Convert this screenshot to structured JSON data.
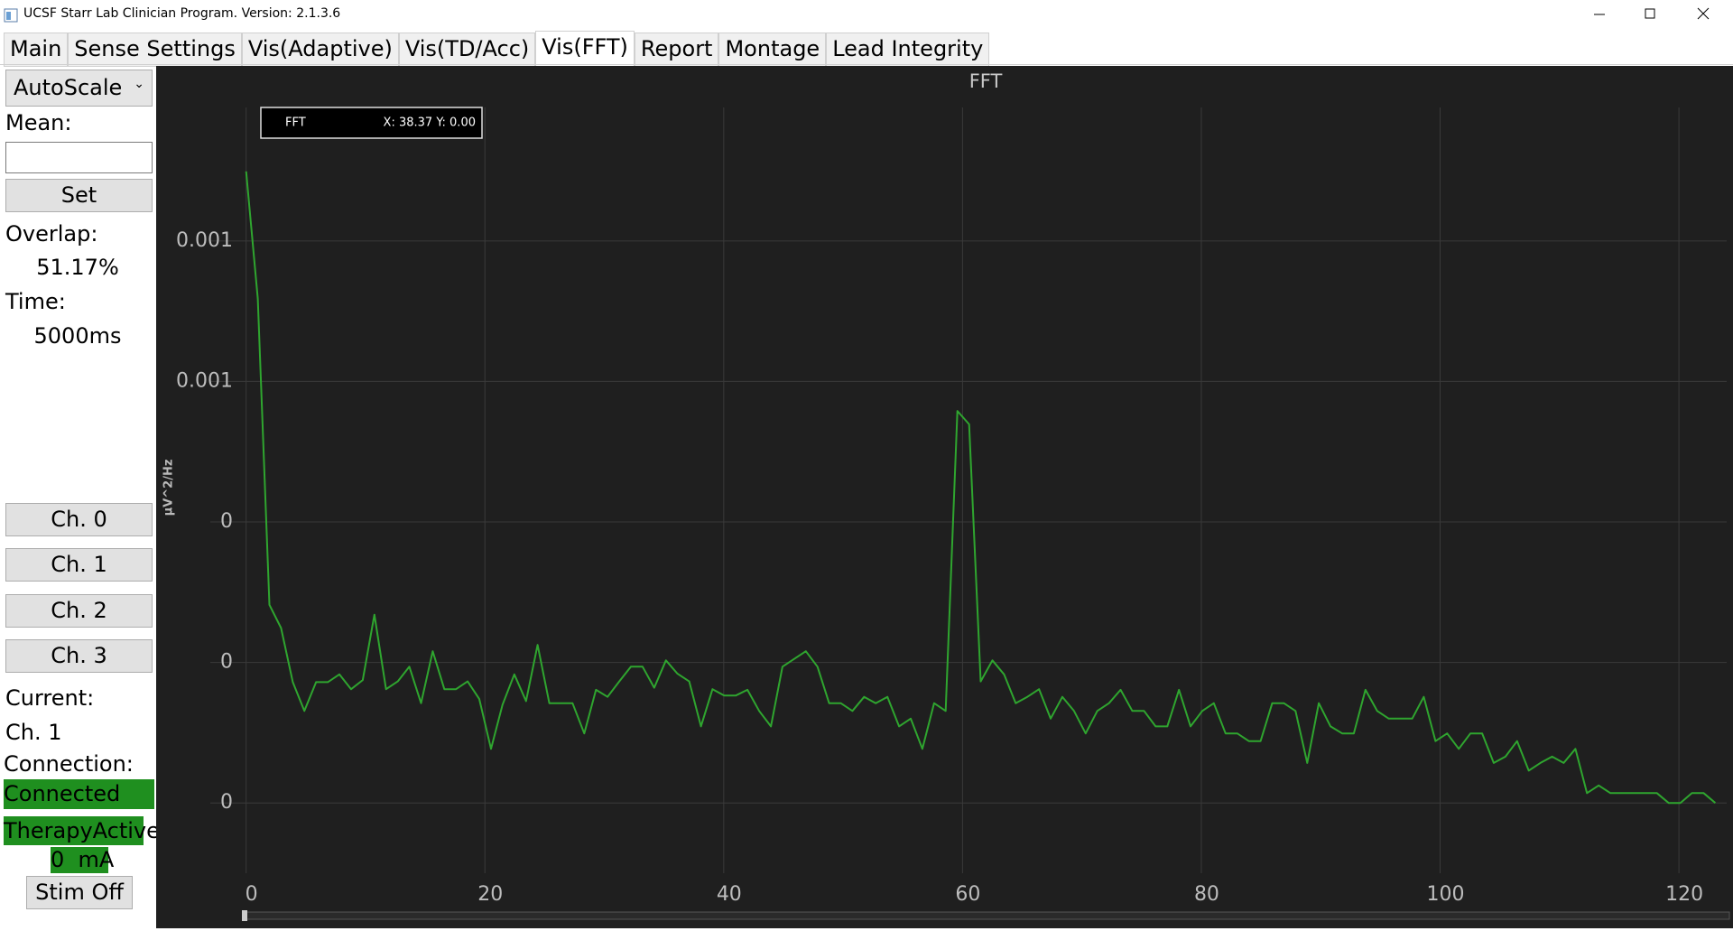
{
  "window": {
    "title": "UCSF Starr Lab Clinician Program. Version: 2.1.3.6"
  },
  "tabs": [
    "Main",
    "Sense Settings",
    "Vis(Adaptive)",
    "Vis(TD/Acc)",
    "Vis(FFT)",
    "Report",
    "Montage",
    "Lead Integrity"
  ],
  "sidebar": {
    "scale_mode": "AutoScale",
    "mean_label": "Mean:",
    "set_button": "Set",
    "overlap_label": "Overlap:",
    "overlap_value": "51.17%",
    "time_label": "Time:",
    "time_value": "5000ms",
    "channel_buttons": [
      "Ch. 0",
      "Ch. 1",
      "Ch. 2",
      "Ch. 3"
    ],
    "current_label": "Current:",
    "current_value": "Ch. 1",
    "connection_label": "Connection:",
    "connection_status": "Connected",
    "therapy_status": "TherapyActive",
    "amplitude": "0  mA",
    "stim_button": "Stim Off"
  },
  "chart_data": {
    "type": "line",
    "title": "FFT",
    "ylabel": "µV^2/Hz",
    "readout": "X: 38.37 Y: 0.00",
    "x": [
      0,
      0.98,
      1.95,
      2.93,
      3.91,
      4.88,
      5.86,
      6.84,
      7.81,
      8.79,
      9.77,
      10.74,
      11.72,
      12.7,
      13.67,
      14.65,
      15.63,
      16.6,
      17.58,
      18.55,
      19.53,
      20.51,
      21.48,
      22.46,
      23.44,
      24.41,
      25.39,
      26.37,
      27.34,
      28.32,
      29.3,
      30.27,
      31.25,
      32.23,
      33.2,
      34.18,
      35.16,
      36.13,
      37.11,
      38.09,
      39.06,
      40.04,
      41.02,
      41.99,
      42.97,
      43.95,
      44.92,
      45.9,
      46.88,
      47.85,
      48.83,
      49.8,
      50.78,
      51.76,
      52.73,
      53.71,
      54.69,
      55.66,
      56.64,
      57.62,
      58.59,
      59.57,
      60.55,
      61.52,
      62.5,
      63.48,
      64.45,
      65.43,
      66.41,
      67.38,
      68.36,
      69.34,
      70.31,
      71.29,
      72.27,
      73.24,
      74.22,
      75.2,
      76.17,
      77.15,
      78.13,
      79.1,
      80.08,
      81.05,
      82.03,
      83.01,
      83.98,
      84.96,
      85.94,
      86.91,
      87.89,
      88.87,
      89.84,
      90.82,
      91.8,
      92.77,
      93.75,
      94.73,
      95.7,
      96.68,
      97.66,
      98.63,
      99.61,
      100.59,
      101.56,
      102.54,
      103.52,
      104.49,
      105.47,
      106.45,
      107.42,
      108.4,
      109.38,
      110.35,
      111.33,
      112.3,
      113.28,
      114.26,
      115.23,
      116.21,
      117.19,
      118.16,
      119.14,
      120.12,
      121.09,
      122.07,
      123.05
    ],
    "series": [
      {
        "name": "FFT",
        "color": "#2fa52f",
        "values": [
          0.000899,
          0.000718,
          0.000282,
          0.000249,
          0.000172,
          0.000131,
          0.000172,
          0.000172,
          0.000183,
          0.000162,
          0.000175,
          0.000268,
          0.000162,
          0.000173,
          0.000194,
          0.000142,
          0.000216,
          0.000162,
          0.000162,
          0.000173,
          0.000148,
          7.7e-05,
          0.00014,
          0.000183,
          0.000145,
          0.000225,
          0.000142,
          0.000142,
          0.000142,
          9.9e-05,
          0.000161,
          0.000151,
          0.000173,
          0.000194,
          0.000194,
          0.000164,
          0.000203,
          0.000184,
          0.000173,
          0.000109,
          0.000162,
          0.000153,
          0.000153,
          0.000161,
          0.000131,
          0.000109,
          0.000194,
          0.000205,
          0.000216,
          0.000194,
          0.000142,
          0.000142,
          0.000131,
          0.000151,
          0.000142,
          0.000151,
          0.000109,
          0.00012,
          7.7e-05,
          0.000142,
          0.000131,
          0.000558,
          0.000539,
          0.000173,
          0.000203,
          0.000183,
          0.000142,
          0.000151,
          0.000162,
          0.00012,
          0.000151,
          0.000131,
          9.9e-05,
          0.000131,
          0.000142,
          0.000161,
          0.000131,
          0.000131,
          0.000109,
          0.000109,
          0.000161,
          0.000109,
          0.000131,
          0.000142,
          9.9e-05,
          9.9e-05,
          8.8e-05,
          8.8e-05,
          0.000142,
          0.000142,
          0.000131,
          5.7e-05,
          0.000142,
          0.000109,
          9.9e-05,
          9.9e-05,
          0.000161,
          0.000131,
          0.00012,
          0.00012,
          0.00012,
          0.000151,
          8.8e-05,
          9.9e-05,
          7.7e-05,
          9.9e-05,
          9.9e-05,
          5.7e-05,
          6.6e-05,
          8.8e-05,
          4.6e-05,
          5.7e-05,
          6.6e-05,
          5.7e-05,
          7.7e-05,
          1.4e-05,
          2.5e-05,
          1.4e-05,
          1.4e-05,
          1.4e-05,
          1.4e-05,
          1.4e-05,
          0,
          0,
          1.4e-05,
          1.4e-05,
          0
        ]
      }
    ],
    "xlim": [
      -3,
      124
    ],
    "xticks": [
      0,
      20,
      40,
      60,
      80,
      100,
      120
    ],
    "ylim": [
      -0.0001,
      0.00099
    ],
    "yticks": [
      0,
      {
        "value": 0.0002,
        "label": "0"
      },
      {
        "value": 0.0004,
        "label": "0"
      },
      {
        "value": 0.0006,
        "label": "0.001"
      },
      {
        "value": 0.0008,
        "label": "0.001"
      }
    ],
    "grid": true
  }
}
